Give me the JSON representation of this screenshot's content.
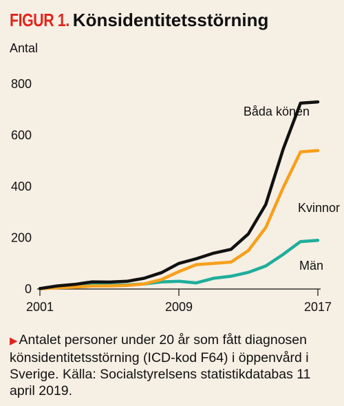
{
  "figure": {
    "label": "FIGUR 1.",
    "title": "Könsidentitetsstörning"
  },
  "caption": {
    "marker": "▶",
    "text": "Antalet personer under 20 år som fått diagnosen könsidentitetsstörning (ICD-kod F64) i öppenvård i Sverige. Källa: Socialstyrelsens statistikdatabas 11 april 2019."
  },
  "chart_data": {
    "type": "line",
    "ylabel": "Antal",
    "xlabel": "",
    "ylim": [
      0,
      800
    ],
    "yticks": [
      0,
      200,
      400,
      600,
      800
    ],
    "xticks": [
      2001,
      2009,
      2017
    ],
    "grid": false,
    "x": [
      2001,
      2002,
      2003,
      2004,
      2005,
      2006,
      2007,
      2008,
      2009,
      2010,
      2011,
      2012,
      2013,
      2014,
      2015,
      2016,
      2017
    ],
    "series": [
      {
        "name": "Båda könen",
        "color": "#111111",
        "values": [
          2,
          12,
          18,
          28,
          27,
          30,
          42,
          64,
          100,
          118,
          140,
          155,
          215,
          330,
          545,
          725,
          730
        ]
      },
      {
        "name": "Kvinnor",
        "color": "#f7a01c",
        "values": [
          1,
          5,
          7,
          12,
          12,
          14,
          20,
          37,
          68,
          95,
          100,
          105,
          150,
          240,
          395,
          535,
          540
        ]
      },
      {
        "name": "Män",
        "color": "#1fae9c",
        "values": [
          1,
          6,
          10,
          16,
          15,
          16,
          20,
          28,
          30,
          24,
          42,
          50,
          65,
          90,
          135,
          185,
          190
        ]
      }
    ]
  }
}
